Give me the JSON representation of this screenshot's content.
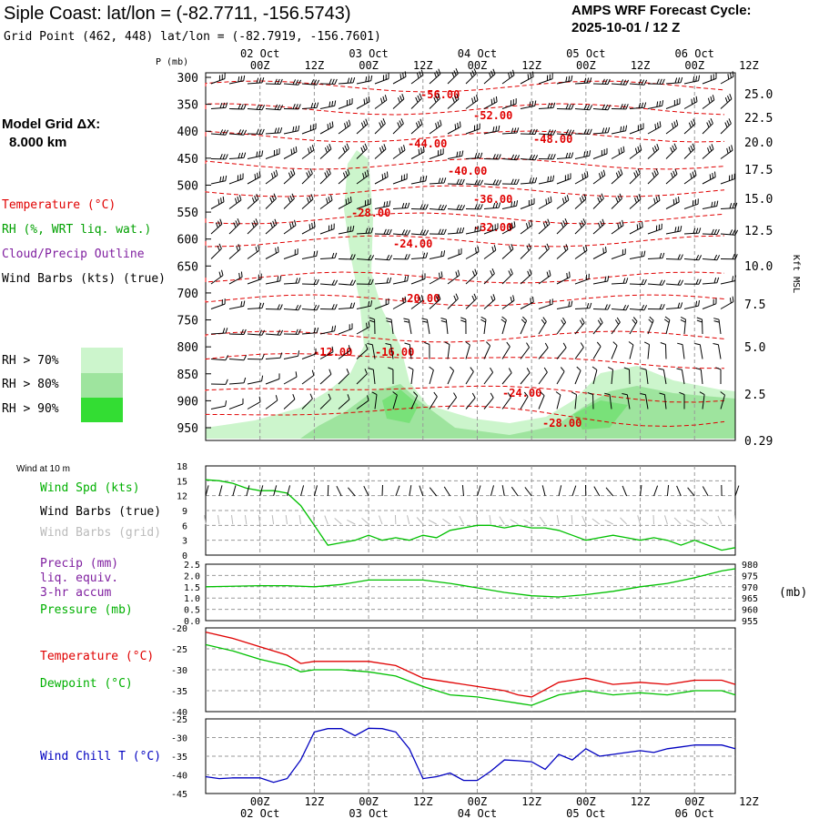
{
  "header": {
    "title": "Siple Coast:  lat/lon = (-82.7711, -156.5743)",
    "subtitle": "Grid Point (462, 448) lat/lon = (-82.7919, -156.7601)",
    "cycle_line1": "AMPS WRF Forecast Cycle:",
    "cycle_line2": "2025-10-01 / 12  Z"
  },
  "side": {
    "grid_label": "Model Grid ΔX:",
    "grid_value": "8.000 km",
    "legend_temperature": "Temperature (°C)",
    "legend_rh": "RH (%, WRT liq. wat.)",
    "legend_cloud": "Cloud/Precip Outline",
    "legend_wind": "Wind Barbs (kts) (true)",
    "rh70": "RH > 70%",
    "rh80": "RH > 80%",
    "rh90": "RH > 90%",
    "wind10m": "Wind at 10 m",
    "leg_windspd": "Wind Spd (kts)",
    "leg_windbarbs_true": "Wind Barbs (true)",
    "leg_windbarbs_grid": "Wind Barbs (grid)",
    "leg_precip1": "Precip (mm)",
    "leg_precip2": "liq. equiv.",
    "leg_precip3": "3-hr accum",
    "leg_pressure": "Pressure (mb)",
    "leg_temp": "Temperature (°C)",
    "leg_dew": "Dewpoint (°C)",
    "leg_windchill": "Wind Chill T (°C)",
    "p_axis_label": "P (mb)",
    "kft_label": "Kft MSL",
    "mb_label": "(mb)"
  },
  "colors": {
    "temperature": "#e00000",
    "rh_label": "#00a000",
    "cloud": "#8020a0",
    "line_green": "#00c000",
    "windchill": "#0000c0",
    "rh70": "#ccf5cc",
    "rh80": "#9ee49e",
    "rh90": "#33dd33",
    "grid": "#999999",
    "gray_barb": "#bbbbbb"
  },
  "time_axis": {
    "hour_ticks": [
      "00Z",
      "12Z",
      "00Z",
      "12Z",
      "00Z",
      "12Z",
      "00Z",
      "12Z",
      "00Z",
      "12Z"
    ],
    "date_ticks": [
      "02 Oct",
      "03 Oct",
      "04 Oct",
      "05 Oct",
      "06 Oct"
    ]
  },
  "chart_data": [
    {
      "type": "heatmap",
      "name": "time-height cross section",
      "y_pressure_ticks": [
        300,
        350,
        400,
        450,
        500,
        550,
        600,
        650,
        700,
        750,
        800,
        850,
        900,
        950
      ],
      "y_height_ticks_kft": [
        "25.0",
        "22.5",
        "20.0",
        "17.5",
        "15.0",
        "12.5",
        "10.0",
        "7.5",
        "5.0",
        "2.5",
        "0.29"
      ],
      "temperature_contour_labels": [
        "-56.00",
        "-52.00",
        "-48.00",
        "-44.00",
        "-40.00",
        "-36.00",
        "-32.00",
        "-28.00",
        "-24.00",
        "-20.00",
        "-16.00",
        "-12.00",
        "-24.00",
        "-28.00"
      ]
    },
    {
      "type": "line",
      "name": "10 m wind speed",
      "ylabel": "Wind Spd (kts)",
      "ylim": [
        0,
        18
      ],
      "yticks": [
        0,
        3,
        6,
        9,
        12,
        15,
        18
      ],
      "x_hours": [
        0,
        3,
        6,
        9,
        12,
        15,
        18,
        21,
        24,
        27,
        30,
        33,
        36,
        39,
        42,
        45,
        48,
        51,
        54,
        57,
        60,
        63,
        66,
        69,
        72,
        75,
        78,
        81,
        84,
        87,
        90,
        93,
        96,
        99,
        102,
        105,
        108,
        111,
        114,
        117
      ],
      "values": [
        15.2,
        15,
        14.5,
        13.5,
        13,
        13,
        12.5,
        10,
        6,
        2,
        2.5,
        3,
        4,
        3,
        3.5,
        3,
        4,
        3.5,
        5,
        5.5,
        6,
        6,
        5.5,
        6,
        5.5,
        5.5,
        5,
        4,
        3,
        3.5,
        4,
        3.5,
        3,
        3.5,
        3,
        2,
        3,
        2,
        1,
        1.5
      ]
    },
    {
      "type": "line",
      "name": "surface pressure",
      "ylabel": "Pressure (mb)",
      "ylim": [
        955,
        980
      ],
      "yticks": [
        955,
        960,
        965,
        970,
        975,
        980
      ],
      "precip_yticks": [
        "0.0",
        "0.5",
        "1.0",
        "1.5",
        "2.0",
        "2.5"
      ],
      "x_hours": [
        0,
        12,
        18,
        24,
        30,
        36,
        42,
        48,
        54,
        60,
        66,
        72,
        78,
        84,
        90,
        96,
        102,
        108,
        114,
        117
      ],
      "values": [
        970,
        970.5,
        970.5,
        970,
        971,
        973,
        973,
        973,
        971.5,
        969.5,
        967.5,
        966,
        965.5,
        966.5,
        968,
        970,
        971.5,
        974,
        977,
        978
      ]
    },
    {
      "type": "line",
      "name": "temperature and dewpoint",
      "ylim": [
        -40,
        -20
      ],
      "yticks": [
        -20,
        -25,
        -30,
        -35,
        -40
      ],
      "x_hours": [
        0,
        6,
        12,
        18,
        21,
        24,
        30,
        36,
        42,
        48,
        54,
        60,
        66,
        69,
        72,
        78,
        84,
        90,
        96,
        102,
        108,
        114,
        117
      ],
      "series": [
        {
          "name": "Temperature (°C)",
          "values": [
            -21,
            -22.5,
            -24.5,
            -26.5,
            -28.5,
            -28,
            -28,
            -28,
            -29,
            -32,
            -33,
            -34,
            -35,
            -36,
            -36.5,
            -33,
            -32,
            -33.5,
            -33,
            -33.5,
            -32.5,
            -32.5,
            -33.5
          ]
        },
        {
          "name": "Dewpoint (°C)",
          "values": [
            -24,
            -25.5,
            -27.5,
            -29,
            -30.5,
            -30,
            -30,
            -30.5,
            -31.5,
            -34,
            -36,
            -36.5,
            -37.5,
            -38,
            -38.5,
            -36,
            -35,
            -36,
            -35.5,
            -36,
            -35,
            -35,
            -36
          ]
        }
      ]
    },
    {
      "type": "line",
      "name": "wind chill",
      "ylabel": "Wind Chill T (°C)",
      "ylim": [
        -45,
        -25
      ],
      "yticks": [
        -25,
        -30,
        -35,
        -40,
        -45
      ],
      "x_hours": [
        0,
        3,
        6,
        9,
        12,
        15,
        18,
        21,
        24,
        27,
        30,
        33,
        36,
        39,
        42,
        45,
        48,
        51,
        54,
        57,
        60,
        63,
        66,
        69,
        72,
        75,
        78,
        81,
        84,
        87,
        90,
        93,
        96,
        99,
        102,
        105,
        108,
        111,
        114,
        117
      ],
      "values": [
        -40.5,
        -41,
        -40.8,
        -40.8,
        -40.8,
        -42,
        -41,
        -36,
        -28.5,
        -27.6,
        -27.6,
        -29.5,
        -27.5,
        -27.6,
        -28.5,
        -33,
        -41,
        -40.5,
        -39.5,
        -41.5,
        -41.5,
        -39,
        -36,
        -36.2,
        -36.5,
        -38.5,
        -34.5,
        -36,
        -33,
        -35,
        -34.5,
        -34,
        -33.5,
        -34,
        -33,
        -32.5,
        -32,
        -32,
        -32,
        -33
      ]
    }
  ]
}
